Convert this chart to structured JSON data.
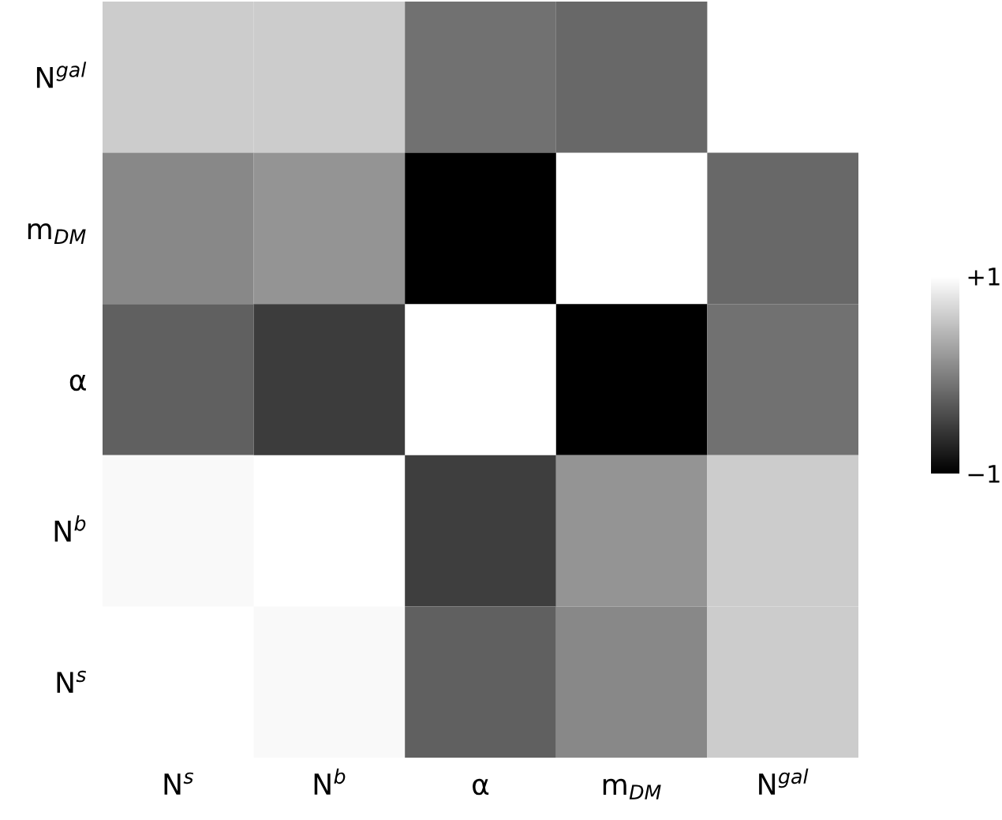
{
  "chart_data": {
    "type": "heatmap",
    "categories": [
      "N$^{s}$",
      "N$^{b}$",
      "α",
      "m$_{DM}$",
      "N$^{gal}$"
    ],
    "y_categories": [
      "N$^{gal}$",
      "m$_{DM}$",
      "α",
      "N$^{b}$",
      "N$^{s}$"
    ],
    "cells": [
      [
        0.6,
        0.6,
        -0.11,
        -0.18,
        null
      ],
      [
        0.07,
        0.16,
        -1,
        null,
        -0.18
      ],
      [
        -0.25,
        -0.53,
        null,
        -1,
        -0.11
      ],
      [
        0.95,
        null,
        -0.51,
        0.16,
        0.6
      ],
      [
        null,
        0.95,
        -0.25,
        0.07,
        0.6
      ]
    ],
    "clim": [
      -1,
      1
    ],
    "cticks": [
      {
        "value": -1,
        "label": "−1"
      },
      {
        "value": 1,
        "label": "+1"
      }
    ]
  }
}
